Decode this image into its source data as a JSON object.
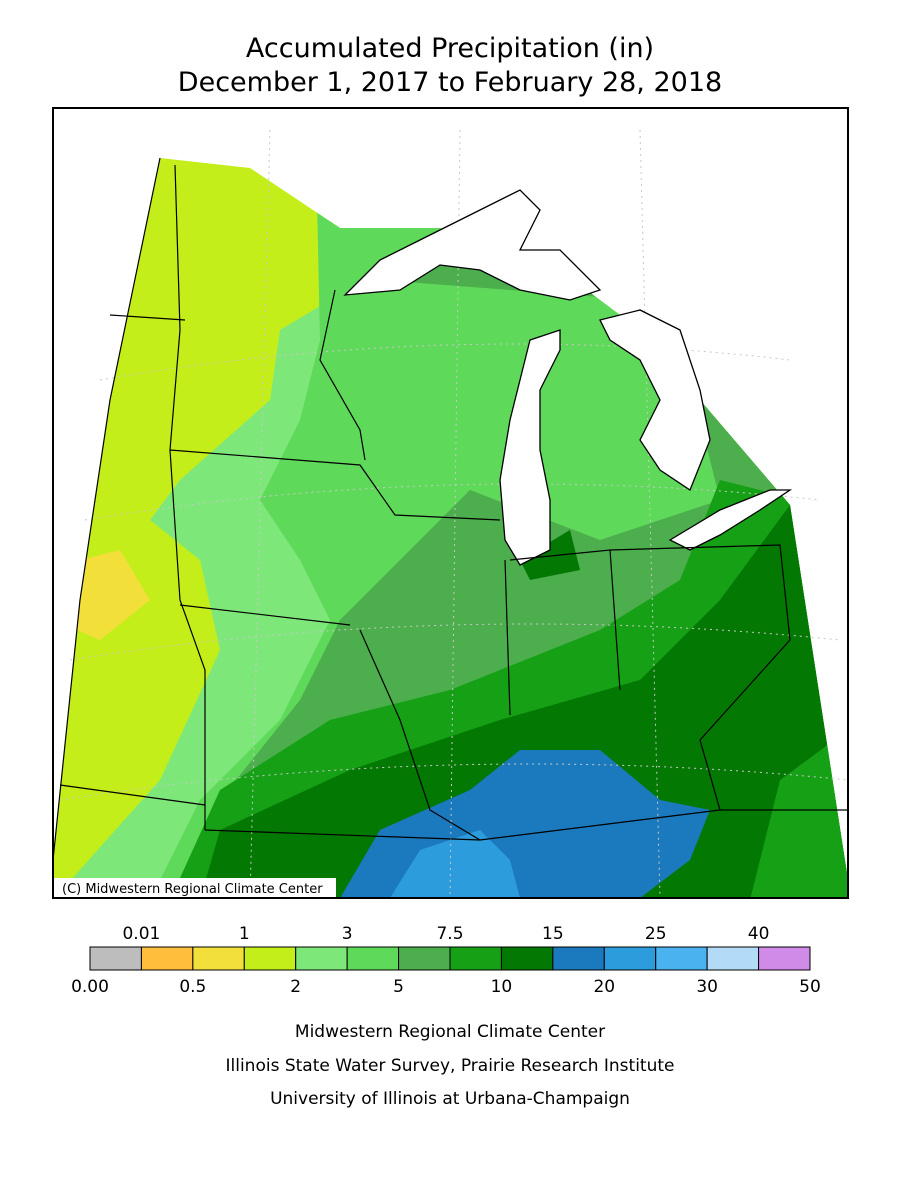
{
  "header": {
    "title": "Accumulated Precipitation (in)",
    "subtitle": "December 1, 2017 to February 28, 2018"
  },
  "map": {
    "credit": "(C) Midwestern Regional Climate Center"
  },
  "legend": {
    "colors": [
      "#bdbdbd",
      "#ffbe3c",
      "#f3df3a",
      "#c3ee1a",
      "#7ee77a",
      "#5fd95a",
      "#4cae4c",
      "#16a016",
      "#037803",
      "#1b79bd",
      "#2c9cdd",
      "#49b2ef",
      "#b3dbf8",
      "#d08ae8"
    ],
    "top_labels": [
      "0.01",
      "1",
      "3",
      "7.5",
      "15",
      "25",
      "40"
    ],
    "bottom_labels": [
      "0.00",
      "0.5",
      "2",
      "5",
      "10",
      "20",
      "30",
      "50"
    ]
  },
  "footer": {
    "lines": [
      "Midwestern Regional Climate Center",
      "Illinois State Water Survey, Prairie Research Institute",
      "University of Illinois at Urbana-Champaign"
    ]
  }
}
